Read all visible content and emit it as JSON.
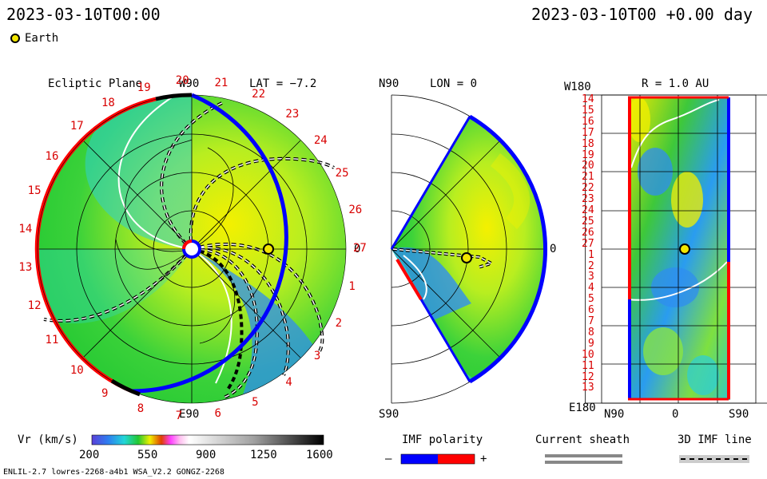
{
  "header": {
    "datetime_left": "2023-03-10T00:00",
    "datetime_right": "2023-03-10T00 +0.00 day",
    "legend_label": "Earth"
  },
  "panels": {
    "ecliptic": {
      "title": "Ecliptic Plane",
      "lat": "LAT = −7.2",
      "top_label": "W90",
      "bottom_label": "E90",
      "right_label": "0",
      "numbers": [
        "1",
        "2",
        "3",
        "4",
        "5",
        "6",
        "7",
        "8",
        "9",
        "10",
        "11",
        "12",
        "13",
        "14",
        "15",
        "16",
        "17",
        "18",
        "19",
        "20",
        "21",
        "22",
        "23",
        "24",
        "25",
        "26",
        "27"
      ]
    },
    "meridional": {
      "lon": "LON = 0",
      "top_label": "N90",
      "bottom_label": "S90",
      "right_label": "0"
    },
    "earth_view": {
      "title": "R = 1.0 AU",
      "top_left": "W180",
      "bottom_left": "E180",
      "x_left": "N90",
      "x_mid": "0",
      "x_right": "S90",
      "rows": [
        "14",
        "15",
        "16",
        "17",
        "18",
        "19",
        "20",
        "21",
        "22",
        "23",
        "24",
        "25",
        "26",
        "27",
        "1",
        "2",
        "3",
        "4",
        "5",
        "6",
        "7",
        "8",
        "9",
        "10",
        "11",
        "12",
        "13"
      ]
    }
  },
  "colorbar": {
    "label": "Vr (km/s)",
    "ticks": [
      "200",
      "550",
      "900",
      "1250",
      "1600"
    ]
  },
  "imf": {
    "label": "IMF polarity",
    "minus": "–",
    "plus": "+",
    "neg_color": "#0000ff",
    "pos_color": "#ff0000"
  },
  "sheath": {
    "label": "Current sheath"
  },
  "imf3d": {
    "label": "3D IMF line"
  },
  "footer": {
    "model": "ENLIL-2.7 lowres-2268-a4b1 WSA_V2.2 GONGZ-2268"
  },
  "colors": {
    "green": "#22c832",
    "lightgreen": "#8ee83a",
    "yellow": "#f4f000",
    "cyan": "#2ed6d0",
    "blue": "#2f8ef0",
    "earth": "#f2e600"
  }
}
